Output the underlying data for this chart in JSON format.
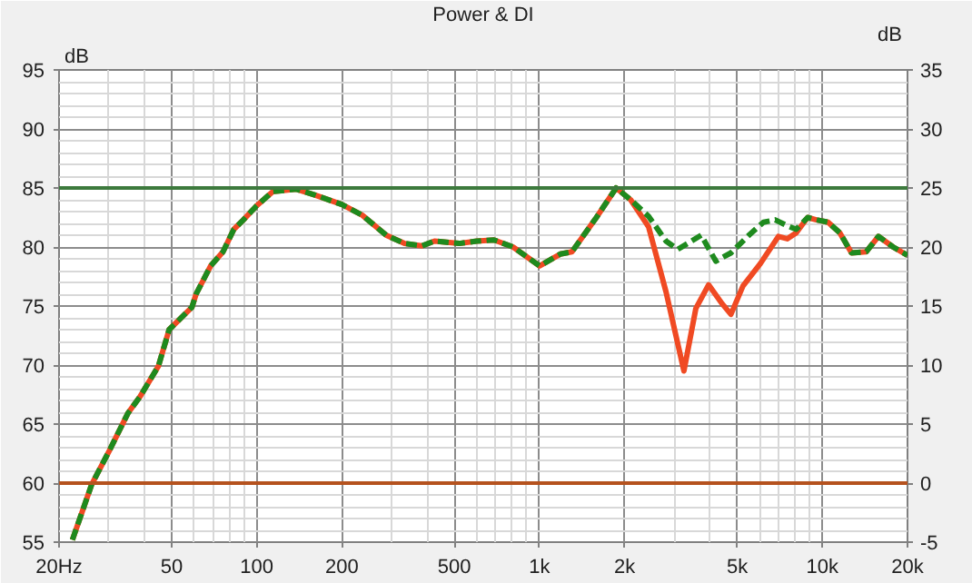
{
  "chart_data": {
    "type": "line",
    "title": "Power & DI",
    "ylabel": "dB",
    "y2label": "dB",
    "log": "x",
    "grid": true,
    "xlim": [
      20,
      20000
    ],
    "ylim": [
      55,
      95
    ],
    "y2lim": [
      -5,
      35
    ],
    "xticks": [
      {
        "value": 20,
        "label": "20Hz"
      },
      50,
      100,
      200,
      500,
      {
        "value": 1000,
        "label": "1k"
      },
      {
        "value": 2000,
        "label": "2k"
      },
      {
        "value": 5000,
        "label": "5k"
      },
      {
        "value": 10000,
        "label": "10k"
      },
      {
        "value": 20000,
        "label": "20k"
      }
    ],
    "yticks": [
      55,
      60,
      65,
      70,
      75,
      80,
      85,
      90,
      95
    ],
    "y2ticks": [
      -5,
      0,
      5,
      10,
      15,
      20,
      25,
      30,
      35
    ],
    "ref_lines": [
      {
        "axis": "y",
        "value": 85,
        "color": "#3d7a3d"
      },
      {
        "axis": "y",
        "value": 60,
        "color": "#b5521e"
      }
    ],
    "series": [
      {
        "color": "#f04a23",
        "line_style": "solid",
        "x": [
          22.3,
          26.1,
          30.2,
          35,
          38.6,
          44.9,
          49,
          59,
          61,
          68.7,
          76,
          83,
          89.7,
          100,
          114,
          138,
          161,
          200,
          236,
          287,
          333,
          384,
          425,
          520,
          600,
          690,
          806,
          1000,
          1183,
          1302,
          1578,
          1865,
          2100,
          2430,
          2800,
          3240,
          3570,
          3960,
          4420,
          4750,
          5240,
          6040,
          6990,
          7510,
          8080,
          8870,
          9530,
          10480,
          11530,
          12680,
          14300,
          15780,
          17790,
          20000
        ],
        "values": [
          55.2,
          59.9,
          62.8,
          65.9,
          67.3,
          69.9,
          73.0,
          74.9,
          76.0,
          78.4,
          79.6,
          81.5,
          82.3,
          83.5,
          84.7,
          84.9,
          84.4,
          83.6,
          82.7,
          81.0,
          80.3,
          80.1,
          80.5,
          80.3,
          80.5,
          80.6,
          80.0,
          78.4,
          79.4,
          79.6,
          82.4,
          85.0,
          84.0,
          81.7,
          76.2,
          69.5,
          74.8,
          76.8,
          75.2,
          74.3,
          76.7,
          78.6,
          80.9,
          80.7,
          81.2,
          82.5,
          82.3,
          82.1,
          81.2,
          79.5,
          79.6,
          80.9,
          80.0,
          79.3
        ]
      },
      {
        "color": "#1e8a1e",
        "line_style": "dashed",
        "x": [
          22.3,
          26.1,
          30.2,
          35,
          38.6,
          44.9,
          49,
          59,
          61,
          68.7,
          76,
          83,
          89.7,
          100,
          114,
          138,
          161,
          200,
          236,
          287,
          333,
          384,
          425,
          520,
          600,
          690,
          806,
          1000,
          1183,
          1302,
          1578,
          1865,
          2100,
          2430,
          2800,
          3080,
          3730,
          4200,
          4750,
          5500,
          6190,
          6810,
          7510,
          8080,
          8870,
          9530,
          10480,
          11530,
          12680,
          14300,
          15780,
          17790,
          20000
        ],
        "values": [
          55.2,
          59.9,
          62.8,
          65.9,
          67.3,
          69.9,
          73.0,
          74.9,
          76.0,
          78.4,
          79.6,
          81.5,
          82.3,
          83.5,
          84.7,
          84.9,
          84.4,
          83.6,
          82.7,
          81.0,
          80.3,
          80.1,
          80.5,
          80.3,
          80.5,
          80.6,
          80.0,
          78.4,
          79.4,
          79.6,
          82.4,
          85.0,
          84.0,
          82.6,
          80.5,
          79.8,
          81.0,
          78.8,
          79.5,
          81.0,
          82.1,
          82.3,
          81.8,
          81.5,
          82.5,
          82.3,
          82.1,
          81.2,
          79.5,
          79.6,
          80.9,
          80.0,
          79.3
        ]
      }
    ]
  }
}
